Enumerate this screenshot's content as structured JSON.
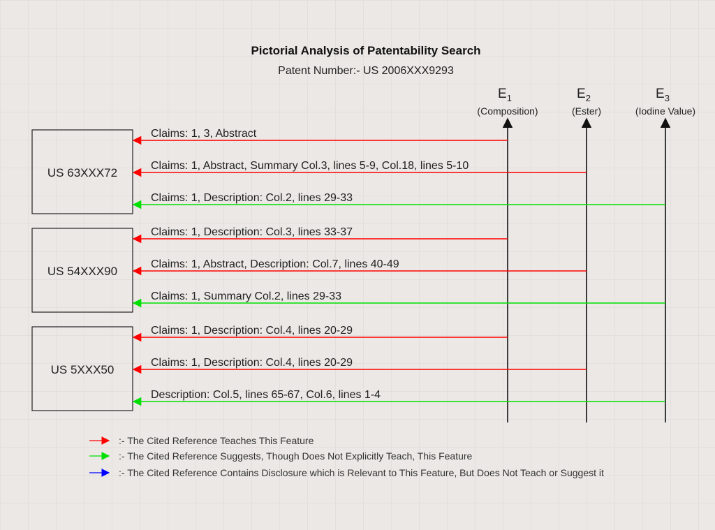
{
  "title": "Pictorial Analysis of Patentability Search",
  "subtitle": "Patent Number:- US 2006XXX9293",
  "features": [
    {
      "letter": "E",
      "sub": "1",
      "name": "(Composition)"
    },
    {
      "letter": "E",
      "sub": "2",
      "name": "(Ester)"
    },
    {
      "letter": "E",
      "sub": "3",
      "name": "(Iodine Value)"
    }
  ],
  "references": [
    {
      "label": "US 63XXX72",
      "citations": [
        {
          "text": "Claims: 1, 3, Abstract",
          "feature": 1,
          "type": "teaches"
        },
        {
          "text": "Claims: 1, Abstract, Summary Col.3, lines 5-9, Col.18, lines 5-10",
          "feature": 2,
          "type": "teaches"
        },
        {
          "text": "Claims: 1, Description: Col.2, lines 29-33",
          "feature": 3,
          "type": "suggests"
        }
      ]
    },
    {
      "label": "US 54XXX90",
      "citations": [
        {
          "text": "Claims: 1, Description: Col.3, lines 33-37",
          "feature": 1,
          "type": "teaches"
        },
        {
          "text": "Claims: 1, Abstract, Description: Col.7, lines 40-49",
          "feature": 2,
          "type": "teaches"
        },
        {
          "text": "Claims: 1, Summary Col.2, lines 29-33",
          "feature": 3,
          "type": "suggests"
        }
      ]
    },
    {
      "label": "US 5XXX50",
      "citations": [
        {
          "text": "Claims: 1, Description: Col.4, lines 20-29",
          "feature": 1,
          "type": "teaches"
        },
        {
          "text": "Claims: 1, Description: Col.4, lines 20-29",
          "feature": 2,
          "type": "teaches"
        },
        {
          "text": "Description: Col.5, lines 65-67, Col.6, lines 1-4",
          "feature": 3,
          "type": "suggests"
        }
      ]
    }
  ],
  "legend": [
    {
      "type": "teaches",
      "color": "#ff0000",
      "text": ":- The Cited Reference Teaches This Feature"
    },
    {
      "type": "suggests",
      "color": "#00e000",
      "text": ":- The Cited Reference Suggests, Though Does Not Explicitly Teach, This Feature"
    },
    {
      "type": "relevant",
      "color": "#0000ff",
      "text": ":- The Cited Reference Contains Disclosure which is Relevant to This Feature, But Does Not Teach or Suggest it"
    }
  ]
}
